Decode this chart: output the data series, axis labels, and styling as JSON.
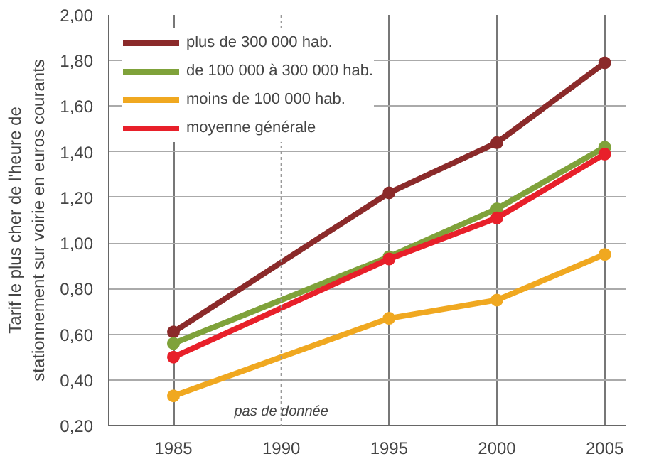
{
  "chart_data": {
    "type": "line",
    "ylabel": "Tarif le plus cher de l'heure de\nstationnement sur voirie en euros courants",
    "x": [
      1985,
      1995,
      2000,
      2005
    ],
    "series": [
      {
        "name": "plus de 300 000 hab.",
        "color": "#8b2a2a",
        "values": [
          0.61,
          1.22,
          1.44,
          1.79
        ]
      },
      {
        "name": "de 100 000 à 300 000 hab.",
        "color": "#7fa23a",
        "values": [
          0.56,
          0.94,
          1.15,
          1.42
        ]
      },
      {
        "name": "moins de 100 000 hab.",
        "color": "#f0a820",
        "values": [
          0.33,
          0.67,
          0.75,
          0.95
        ]
      },
      {
        "name": "moyenne générale",
        "color": "#e8202a",
        "values": [
          0.5,
          0.93,
          1.11,
          1.39
        ]
      }
    ],
    "xlim": [
      1982,
      2006
    ],
    "ylim": [
      0.2,
      2.0
    ],
    "xticks": [
      1985,
      1990,
      1995,
      2000,
      2005
    ],
    "yticks": [
      {
        "value": 0.2,
        "label": "0,20"
      },
      {
        "value": 0.4,
        "label": "0,40"
      },
      {
        "value": 0.6,
        "label": "0,60"
      },
      {
        "value": 0.8,
        "label": "0,80"
      },
      {
        "value": 1.0,
        "label": "1,00"
      },
      {
        "value": 1.2,
        "label": "1,20"
      },
      {
        "value": 1.4,
        "label": "1,40"
      },
      {
        "value": 1.6,
        "label": "1,60"
      },
      {
        "value": 1.8,
        "label": "1,80"
      },
      {
        "value": 2.0,
        "label": "2,00"
      }
    ],
    "ref_lines": [
      {
        "axis": "x",
        "value": 1990,
        "label": "pas de donnée",
        "color": "#999999",
        "line_style": "dotted"
      }
    ],
    "grid": true,
    "legend": "top left",
    "marker": "circle",
    "line_style": "solid"
  }
}
